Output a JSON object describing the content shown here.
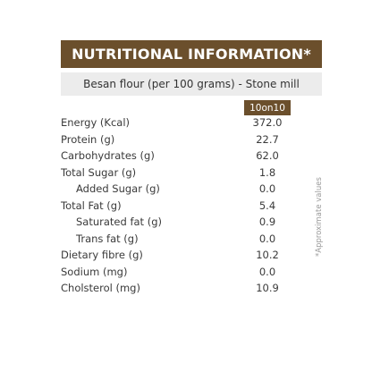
{
  "title": "NUTRITIONAL INFORMATION*",
  "subtitle": "Besan flour (per 100 grams) - Stone mill",
  "brand": "10on10",
  "rows": [
    {
      "label": "Energy (Kcal)",
      "value": "372.0"
    },
    {
      "label": "Protein (g)",
      "value": "22.7"
    },
    {
      "label": "Carbohydrates (g)",
      "value": "62.0"
    },
    {
      "label": "Total Sugar (g)",
      "value": "1.8"
    },
    {
      "label": "Added Sugar (g)",
      "value": "0.0"
    },
    {
      "label": "Total Fat (g)",
      "value": "5.4"
    },
    {
      "label": "Saturated fat (g)",
      "value": "0.9"
    },
    {
      "label": "Trans fat (g)",
      "value": "0.0"
    },
    {
      "label": "Dietary fibre (g)",
      "value": "10.2"
    },
    {
      "label": "Sodium (mg)",
      "value": "0.0"
    },
    {
      "label": "Cholsterol (mg)",
      "value": "10.9"
    }
  ],
  "footnote": "*Approximate values",
  "colors": {
    "accent": "#6b4f2c",
    "subtitle_background": "#ececec",
    "text": "#3a3a3a",
    "footnote": "#9a9a9a"
  }
}
